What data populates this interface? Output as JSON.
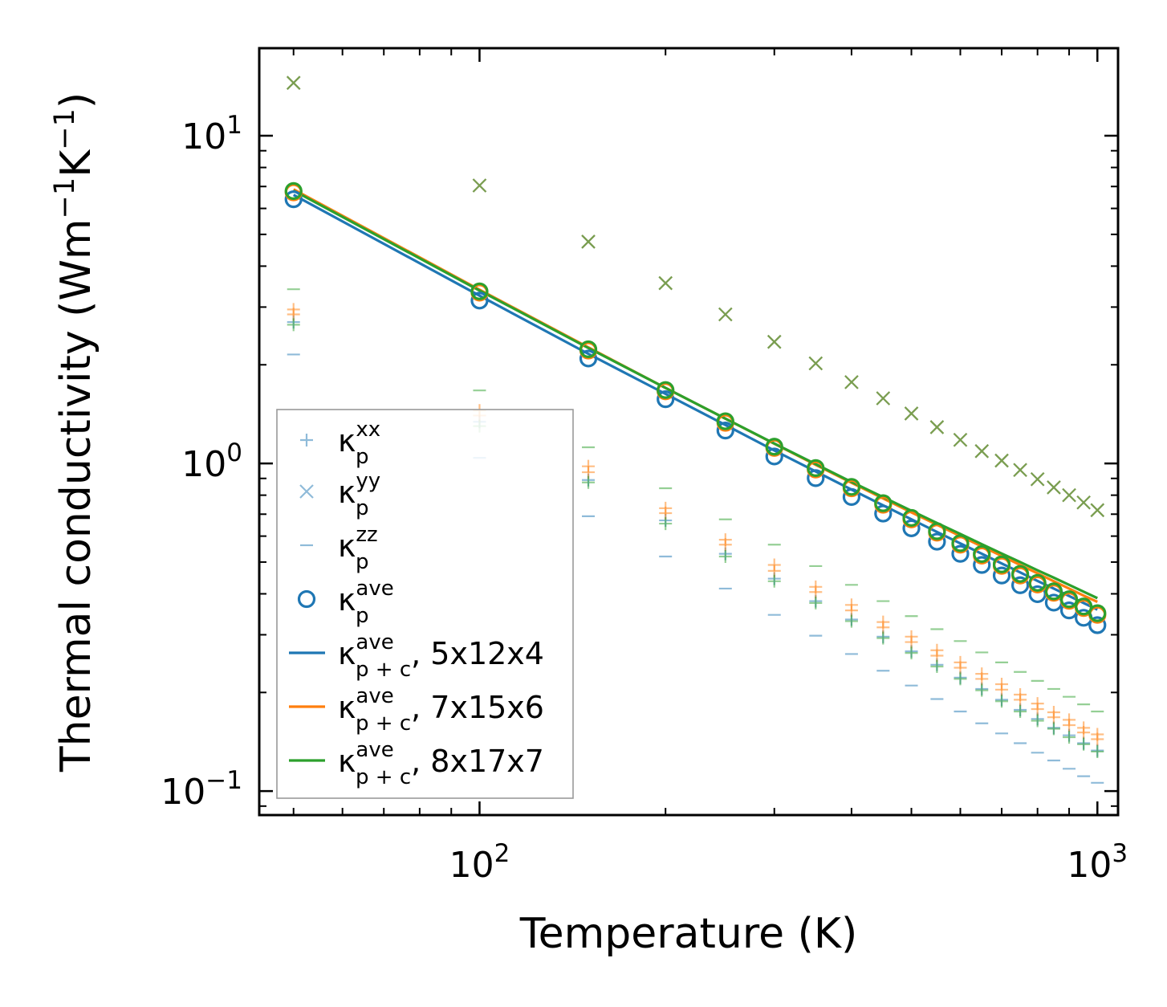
{
  "chart_data": {
    "type": "scatter",
    "xscale": "log",
    "yscale": "log",
    "xlim": [
      44,
      1080
    ],
    "ylim": [
      0.0845,
      18.5
    ],
    "xlabel": "Temperature (K)",
    "ylabel": {
      "base": "Thermal conductivity (Wm",
      "sup1": "−1",
      "mid": "K",
      "sup2": "−1",
      "end": ")"
    },
    "x_ticks": [
      {
        "value": 100,
        "base": "10",
        "exp": "2"
      },
      {
        "value": 1000,
        "base": "10",
        "exp": "3"
      }
    ],
    "y_ticks": [
      {
        "value": 0.1,
        "base": "10",
        "exp": "−1"
      },
      {
        "value": 1,
        "base": "10",
        "exp": "0"
      },
      {
        "value": 10,
        "base": "10",
        "exp": "1"
      }
    ],
    "temperatures": [
      50,
      100,
      150,
      200,
      250,
      300,
      350,
      400,
      450,
      500,
      550,
      600,
      650,
      700,
      750,
      800,
      850,
      900,
      950,
      1000
    ],
    "series": [
      {
        "name": "kappa_p_xx_5x12x4",
        "marker": "plus",
        "color": "#1f77b4",
        "values": [
          2.7,
          1.34,
          0.89,
          0.67,
          0.53,
          0.445,
          0.38,
          0.334,
          0.296,
          0.267,
          0.243,
          0.222,
          0.205,
          0.19,
          0.177,
          0.166,
          0.156,
          0.148,
          0.14,
          0.133
        ]
      },
      {
        "name": "kappa_p_yy_5x12x4",
        "marker": "x",
        "color": "#1f77b4",
        "values": [
          14.5,
          7.05,
          4.75,
          3.55,
          2.85,
          2.35,
          2.02,
          1.77,
          1.58,
          1.42,
          1.29,
          1.18,
          1.09,
          1.02,
          0.955,
          0.895,
          0.845,
          0.8,
          0.76,
          0.72
        ]
      },
      {
        "name": "kappa_p_zz_5x12x4",
        "marker": "minus",
        "color": "#1f77b4",
        "values": [
          2.15,
          1.04,
          0.69,
          0.52,
          0.415,
          0.345,
          0.298,
          0.262,
          0.233,
          0.21,
          0.191,
          0.175,
          0.161,
          0.15,
          0.14,
          0.131,
          0.124,
          0.117,
          0.111,
          0.106
        ]
      },
      {
        "name": "kappa_p_xx_7x15x6",
        "marker": "plus",
        "color": "#ff7f0e",
        "values": [
          2.95,
          1.45,
          0.98,
          0.73,
          0.585,
          0.49,
          0.42,
          0.37,
          0.328,
          0.296,
          0.269,
          0.247,
          0.228,
          0.212,
          0.197,
          0.185,
          0.174,
          0.165,
          0.156,
          0.149
        ]
      },
      {
        "name": "kappa_p_xx_7x15x6_b",
        "marker": "plus",
        "color": "#ff7f0e",
        "values": [
          2.85,
          1.4,
          0.94,
          0.705,
          0.565,
          0.47,
          0.405,
          0.356,
          0.316,
          0.285,
          0.259,
          0.238,
          0.22,
          0.204,
          0.19,
          0.178,
          0.168,
          0.159,
          0.151,
          0.144
        ]
      },
      {
        "name": "kappa_p_yy_7x15x6",
        "marker": "x",
        "color": "#ff7f0e",
        "values": [
          14.5,
          7.05,
          4.75,
          3.55,
          2.85,
          2.35,
          2.02,
          1.77,
          1.58,
          1.42,
          1.29,
          1.18,
          1.09,
          1.02,
          0.955,
          0.895,
          0.845,
          0.8,
          0.76,
          0.72
        ]
      },
      {
        "name": "kappa_p_xx_8x17x7",
        "marker": "plus",
        "color": "#2ca02c",
        "values": [
          2.65,
          1.3,
          0.875,
          0.655,
          0.52,
          0.437,
          0.375,
          0.33,
          0.293,
          0.264,
          0.24,
          0.22,
          0.203,
          0.188,
          0.175,
          0.164,
          0.155,
          0.146,
          0.139,
          0.132
        ]
      },
      {
        "name": "kappa_p_yy_8x17x7",
        "marker": "x",
        "color": "#2ca02c",
        "values": [
          14.5,
          7.05,
          4.75,
          3.55,
          2.85,
          2.35,
          2.02,
          1.77,
          1.58,
          1.42,
          1.29,
          1.18,
          1.09,
          1.02,
          0.955,
          0.895,
          0.845,
          0.8,
          0.76,
          0.72
        ]
      },
      {
        "name": "kappa_p_zz_8x17x7",
        "marker": "minus",
        "color": "#2ca02c",
        "values": [
          3.4,
          1.67,
          1.12,
          0.84,
          0.675,
          0.565,
          0.486,
          0.426,
          0.38,
          0.342,
          0.312,
          0.287,
          0.265,
          0.247,
          0.231,
          0.217,
          0.205,
          0.194,
          0.184,
          0.175
        ]
      },
      {
        "name": "kappa_p_ave_5x12x4",
        "marker": "circle",
        "color": "#1f77b4",
        "values": [
          6.4,
          3.14,
          2.09,
          1.57,
          1.26,
          1.05,
          0.902,
          0.79,
          0.703,
          0.634,
          0.577,
          0.53,
          0.49,
          0.455,
          0.425,
          0.399,
          0.376,
          0.356,
          0.338,
          0.321
        ]
      },
      {
        "name": "kappa_p_ave_7x15x6",
        "marker": "circle",
        "color": "#ff7f0e",
        "values": [
          6.72,
          3.32,
          2.21,
          1.66,
          1.33,
          1.115,
          0.958,
          0.84,
          0.748,
          0.675,
          0.615,
          0.565,
          0.523,
          0.487,
          0.455,
          0.427,
          0.403,
          0.381,
          0.362,
          0.345
        ]
      },
      {
        "name": "kappa_p_ave_8x17x7",
        "marker": "circle",
        "color": "#2ca02c",
        "values": [
          6.78,
          3.35,
          2.23,
          1.675,
          1.345,
          1.125,
          0.968,
          0.848,
          0.756,
          0.682,
          0.621,
          0.571,
          0.529,
          0.492,
          0.46,
          0.432,
          0.407,
          0.385,
          0.366,
          0.349
        ]
      },
      {
        "name": "kappa_pc_ave_5x12x4",
        "marker": "line",
        "color": "#1f77b4",
        "values": [
          6.6,
          3.25,
          2.16,
          1.63,
          1.31,
          1.095,
          0.945,
          0.832,
          0.745,
          0.675,
          0.618,
          0.57,
          0.53,
          0.495,
          0.465,
          0.438,
          0.415,
          0.394,
          0.375,
          0.358
        ]
      },
      {
        "name": "kappa_pc_ave_7x15x6",
        "marker": "line",
        "color": "#ff7f0e",
        "values": [
          6.86,
          3.39,
          2.26,
          1.7,
          1.37,
          1.148,
          0.99,
          0.873,
          0.782,
          0.709,
          0.65,
          0.6,
          0.558,
          0.522,
          0.49,
          0.462,
          0.437,
          0.415,
          0.395,
          0.378
        ]
      },
      {
        "name": "kappa_pc_ave_8x17x7",
        "marker": "line",
        "color": "#2ca02c",
        "values": [
          6.8,
          3.37,
          2.25,
          1.7,
          1.37,
          1.15,
          0.995,
          0.878,
          0.789,
          0.717,
          0.658,
          0.609,
          0.567,
          0.531,
          0.5,
          0.472,
          0.448,
          0.426,
          0.406,
          0.388
        ]
      }
    ],
    "legend": {
      "position": "lower-left",
      "entries": [
        {
          "marker": "plus",
          "color": "#1f77b4",
          "sym": "κ",
          "sub": "p",
          "sup": "xx",
          "suffix": ""
        },
        {
          "marker": "x",
          "color": "#1f77b4",
          "sym": "κ",
          "sub": "p",
          "sup": "yy",
          "suffix": ""
        },
        {
          "marker": "minus",
          "color": "#1f77b4",
          "sym": "κ",
          "sub": "p",
          "sup": "zz",
          "suffix": ""
        },
        {
          "marker": "circle",
          "color": "#1f77b4",
          "sym": "κ",
          "sub": "p",
          "sup": "ave",
          "suffix": ""
        },
        {
          "marker": "line",
          "color": "#1f77b4",
          "sym": "κ",
          "sub": "p + c",
          "sup": "ave",
          "suffix": ", 5x12x4"
        },
        {
          "marker": "line",
          "color": "#ff7f0e",
          "sym": "κ",
          "sub": "p + c",
          "sup": "ave",
          "suffix": ", 7x15x6"
        },
        {
          "marker": "line",
          "color": "#2ca02c",
          "sym": "κ",
          "sub": "p + c",
          "sup": "ave",
          "suffix": ", 8x17x7"
        }
      ]
    }
  }
}
